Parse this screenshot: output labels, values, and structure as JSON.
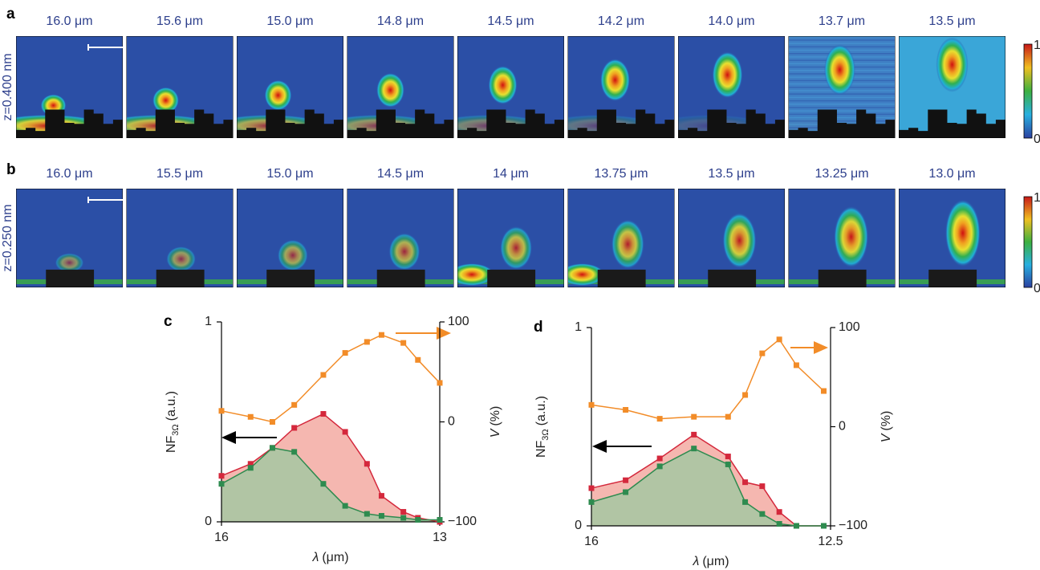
{
  "panels": [
    {
      "label": "a",
      "side_label": "z=0.400 nm",
      "titles": [
        "16.0 μm",
        "15.6 μm",
        "15.0 μm",
        "14.8 μm",
        "14.5 μm",
        "14.2 μm",
        "14.0 μm",
        "13.7 μm",
        "13.5 μm"
      ],
      "colorbar": [
        "1",
        "0"
      ]
    },
    {
      "label": "b",
      "side_label": "z=0.250 nm",
      "titles": [
        "16.0 μm",
        "15.5 μm",
        "15.0 μm",
        "14.5 μm",
        "14 μm",
        "13.75 μm",
        "13.5 μm",
        "13.25 μm",
        "13.0 μm"
      ],
      "colorbar": [
        "1",
        "0"
      ]
    }
  ],
  "chart_data": [
    {
      "type": "line",
      "panel_label": "c",
      "y_label": "NF",
      "y_label_sub": "3Ω",
      "y_label_unit": "(a.u.)",
      "y2_label_symbol": "V",
      "y2_label_unit": "(%)",
      "x_label_symbol": "λ",
      "x_label_unit": "(μm)",
      "x": [
        16.0,
        15.6,
        15.3,
        15.0,
        14.6,
        14.3,
        14.0,
        13.8,
        13.5,
        13.3,
        13.0
      ],
      "xlim": [
        16,
        13
      ],
      "xticks": [
        16,
        13
      ],
      "ylim": [
        0,
        1
      ],
      "yticks": [
        0,
        1
      ],
      "y2lim": [
        -100,
        100
      ],
      "y2ticks": [
        {
          "value": -100,
          "label": "−100"
        },
        0,
        100
      ],
      "series": [
        {
          "color": "#d4283c",
          "fill": "#f3aaa2",
          "values": [
            0.23,
            0.29,
            0.37,
            0.47,
            0.54,
            0.45,
            0.29,
            0.13,
            0.05,
            0.02,
            0.0
          ]
        },
        {
          "color": "#2e8b4f",
          "fill": "#a4c8a2",
          "values": [
            0.19,
            0.27,
            0.37,
            0.35,
            0.19,
            0.08,
            0.04,
            0.03,
            0.02,
            0.01,
            0.01
          ]
        },
        {
          "color": "#f28c28",
          "axis": "y2",
          "values": [
            11,
            5,
            0,
            17,
            47,
            69,
            80,
            87,
            79,
            62,
            39
          ]
        }
      ]
    },
    {
      "type": "line",
      "panel_label": "d",
      "y_label": "NF",
      "y_label_sub": "3Ω",
      "y_label_unit": "(a.u.)",
      "y2_label_symbol": "V",
      "y2_label_unit": "(%)",
      "x_label_symbol": "λ",
      "x_label_unit": "(μm)",
      "x": [
        16.0,
        15.5,
        15.0,
        14.5,
        14.0,
        13.75,
        13.5,
        13.25,
        13.0,
        12.6
      ],
      "xlim": [
        16,
        12.5
      ],
      "xticks": [
        16,
        12.5
      ],
      "ylim": [
        0,
        1
      ],
      "yticks": [
        0,
        1
      ],
      "y2lim": [
        -100,
        100
      ],
      "y2ticks": [
        {
          "value": -100,
          "label": "−100"
        },
        0,
        100
      ],
      "series": [
        {
          "color": "#d4283c",
          "fill": "#f3aaa2",
          "values": [
            0.19,
            0.23,
            0.34,
            0.46,
            0.35,
            0.22,
            0.2,
            0.07,
            0.0,
            0.0
          ]
        },
        {
          "color": "#2e8b4f",
          "fill": "#a4c8a2",
          "values": [
            0.12,
            0.17,
            0.3,
            0.39,
            0.31,
            0.12,
            0.06,
            0.01,
            0.0,
            0.0
          ]
        },
        {
          "color": "#f28c28",
          "axis": "y2",
          "values": [
            22,
            17,
            8,
            10,
            10,
            32,
            74,
            88,
            62,
            36
          ]
        }
      ]
    }
  ]
}
